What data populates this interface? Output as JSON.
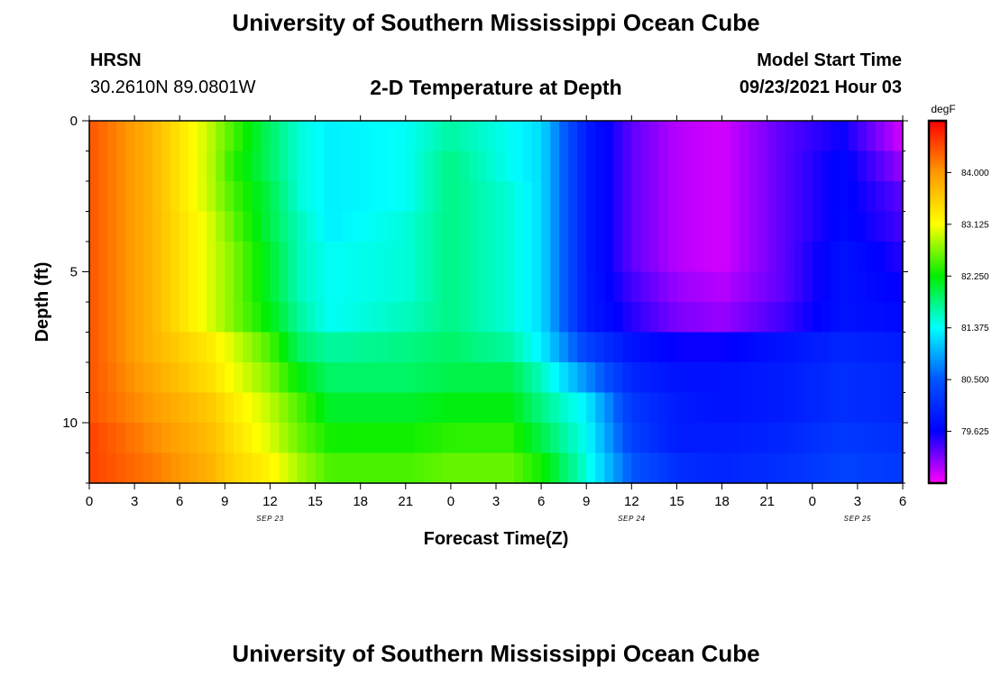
{
  "page": {
    "title_top": "University of Southern Mississippi Ocean Cube",
    "title_bottom": "University of Southern Mississippi Ocean Cube",
    "station_name": "HRSN",
    "station_coords": "30.2610N  89.0801W",
    "plot_title": "2-D Temperature at Depth",
    "model_start_label": "Model Start Time",
    "model_start_value": "09/23/2021 Hour 03"
  },
  "chart_data": {
    "type": "heatmap",
    "title": "2-D Temperature at Depth",
    "xlabel": "Forecast Time(Z)",
    "ylabel": "Depth (ft)",
    "x_hours_from_start": [
      0,
      3,
      6,
      9,
      12,
      15,
      18,
      21,
      24,
      27,
      30,
      33,
      36,
      39,
      42,
      45,
      48,
      51,
      54
    ],
    "x_tick_labels": [
      "0",
      "3",
      "6",
      "9",
      "12",
      "15",
      "18",
      "21",
      "0",
      "3",
      "6",
      "9",
      "12",
      "15",
      "18",
      "21",
      "0",
      "3",
      "6"
    ],
    "x_range": [
      0,
      54
    ],
    "date_labels": [
      {
        "text": "SEP 23",
        "hour": 12
      },
      {
        "text": "SEP 24",
        "hour": 36
      },
      {
        "text": "SEP 25",
        "hour": 51
      }
    ],
    "y_range": [
      0,
      12
    ],
    "y_major_ticks": [
      0,
      5,
      10
    ],
    "y_tick_labels": [
      "0",
      "5",
      "10"
    ],
    "y_minor_step": 1,
    "colorbar": {
      "units": "degF",
      "range": [
        78.75,
        84.875
      ],
      "tick_values": [
        84.0,
        83.125,
        82.25,
        81.375,
        80.5,
        79.625
      ],
      "tick_labels": [
        "84.000",
        "83.125",
        "82.250",
        "81.375",
        "80.500",
        "79.625"
      ],
      "colors": [
        "#ff00ff",
        "#0000ff",
        "#0055ff",
        "#00ffff",
        "#00ee00",
        "#ffff00",
        "#ff9900",
        "#ff0000"
      ]
    },
    "depth_levels": [
      0.5,
      1.5,
      2.5,
      3.5,
      4.5,
      5.5,
      6.5,
      7.5,
      8.5,
      9.5,
      10.5,
      11.5
    ],
    "time_knots": [
      0,
      4,
      8,
      9.5,
      12,
      14,
      16,
      21,
      24,
      28,
      30,
      33,
      36,
      39,
      42,
      46,
      50,
      54
    ],
    "temperature_degF": [
      [
        84.4,
        83.8,
        82.9,
        82.5,
        81.9,
        81.5,
        81.3,
        81.4,
        81.7,
        81.4,
        81.2,
        79.9,
        79.3,
        79.0,
        78.9,
        79.3,
        79.6,
        78.9
      ],
      [
        84.4,
        83.8,
        82.9,
        82.4,
        81.9,
        81.5,
        81.3,
        81.4,
        81.8,
        81.4,
        81.2,
        79.9,
        79.3,
        79.0,
        78.9,
        79.3,
        79.7,
        79.1
      ],
      [
        84.4,
        83.8,
        82.9,
        82.5,
        82.0,
        81.5,
        81.3,
        81.4,
        81.8,
        81.5,
        81.2,
        79.9,
        79.3,
        79.0,
        78.9,
        79.3,
        79.7,
        79.3
      ],
      [
        84.4,
        83.8,
        83.0,
        82.6,
        82.0,
        81.6,
        81.3,
        81.5,
        81.8,
        81.5,
        81.2,
        79.9,
        79.3,
        79.0,
        78.9,
        79.3,
        79.7,
        79.4
      ],
      [
        84.4,
        83.8,
        83.0,
        82.7,
        82.1,
        81.6,
        81.4,
        81.5,
        81.8,
        81.5,
        81.2,
        79.9,
        79.3,
        79.0,
        78.9,
        79.3,
        79.8,
        79.5
      ],
      [
        84.4,
        83.8,
        83.0,
        82.7,
        82.1,
        81.6,
        81.4,
        81.5,
        81.8,
        81.5,
        81.2,
        79.9,
        79.4,
        79.1,
        79.0,
        79.3,
        79.8,
        79.6
      ],
      [
        84.4,
        83.8,
        83.0,
        82.7,
        82.2,
        81.7,
        81.4,
        81.6,
        81.8,
        81.5,
        81.2,
        79.9,
        79.5,
        79.2,
        79.1,
        79.4,
        79.8,
        79.7
      ],
      [
        84.4,
        83.8,
        83.3,
        83.0,
        82.5,
        81.9,
        81.7,
        81.8,
        81.9,
        81.7,
        81.3,
        80.3,
        79.8,
        79.6,
        79.6,
        79.8,
        80.0,
        79.9
      ],
      [
        84.4,
        83.9,
        83.4,
        83.1,
        82.7,
        82.2,
        81.9,
        81.9,
        82.0,
        82.0,
        81.6,
        80.8,
        80.0,
        79.8,
        79.8,
        79.9,
        80.1,
        80.0
      ],
      [
        84.4,
        84.0,
        83.6,
        83.3,
        82.9,
        82.5,
        82.1,
        82.1,
        82.2,
        82.2,
        81.8,
        81.3,
        80.2,
        79.9,
        79.8,
        79.9,
        80.1,
        80.0
      ],
      [
        84.5,
        84.1,
        83.7,
        83.4,
        83.0,
        82.6,
        82.3,
        82.3,
        82.4,
        82.4,
        82.0,
        81.4,
        80.3,
        79.9,
        79.9,
        80.0,
        80.2,
        80.1
      ],
      [
        84.5,
        84.2,
        83.8,
        83.5,
        83.2,
        82.8,
        82.5,
        82.5,
        82.6,
        82.6,
        82.3,
        81.5,
        80.5,
        80.1,
        80.0,
        80.1,
        80.3,
        80.2
      ]
    ]
  }
}
